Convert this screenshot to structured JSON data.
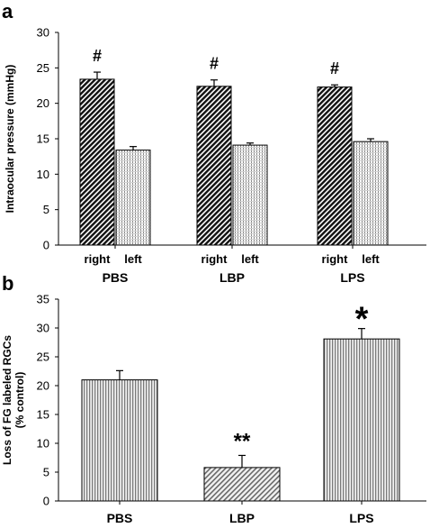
{
  "chart_data": [
    {
      "panel": "a",
      "type": "bar",
      "ylabel": "Intraocular pressure (mmHg)",
      "ylim": [
        0,
        30
      ],
      "yticks": [
        0,
        5,
        10,
        15,
        20,
        25,
        30
      ],
      "categories": [
        "PBS",
        "LBP",
        "LPS"
      ],
      "sublabels": [
        "right",
        "left"
      ],
      "series": [
        {
          "values": [
            23.4,
            22.4,
            22.3
          ],
          "errors": [
            1.0,
            0.9,
            0.3
          ],
          "pattern": "dark-diagonal"
        },
        {
          "values": [
            13.4,
            14.1,
            14.6
          ],
          "errors": [
            0.5,
            0.3,
            0.4
          ],
          "pattern": "light-dotted"
        }
      ],
      "annotations": [
        "#",
        "#",
        "#"
      ]
    },
    {
      "panel": "b",
      "type": "bar",
      "ylabel": "Loss of FG labeled RGCs",
      "ylabel2": "(% control)",
      "ylim": [
        0,
        35
      ],
      "yticks": [
        0,
        5,
        10,
        15,
        20,
        25,
        30,
        35
      ],
      "categories": [
        "PBS",
        "LBP",
        "LPS"
      ],
      "values": [
        21.0,
        5.8,
        28.1
      ],
      "errors": [
        1.6,
        2.1,
        1.8
      ],
      "annotations": [
        "",
        "**",
        "*"
      ]
    }
  ]
}
